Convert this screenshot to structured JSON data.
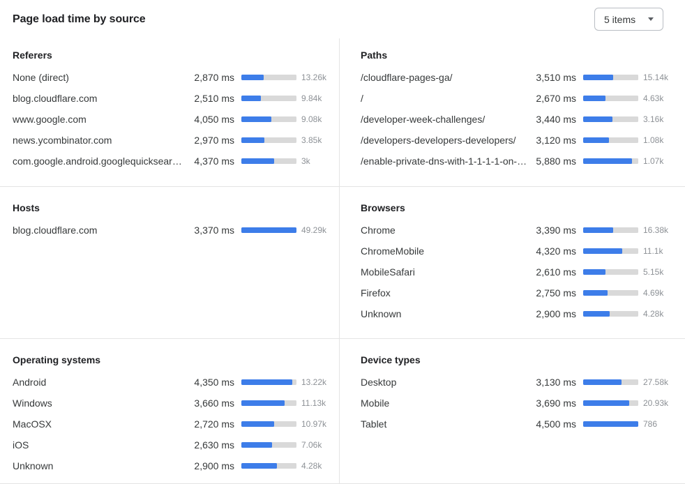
{
  "header": {
    "title": "Page load time by source",
    "dropdown": {
      "value": "5 items"
    }
  },
  "colors": {
    "bar_fill": "#3d7de9",
    "bar_track": "#d9d9d9",
    "divider": "#e4e4e4",
    "muted_text": "#8d9196"
  },
  "panels": [
    {
      "title": "Referers",
      "rows": [
        {
          "label": "None (direct)",
          "load_time": "2,870 ms",
          "bar_pct": 41,
          "count": "13.26k"
        },
        {
          "label": "blog.cloudflare.com",
          "load_time": "2,510 ms",
          "bar_pct": 36,
          "count": "9.84k"
        },
        {
          "label": "www.google.com",
          "load_time": "4,050 ms",
          "bar_pct": 55,
          "count": "9.08k"
        },
        {
          "label": "news.ycombinator.com",
          "load_time": "2,970 ms",
          "bar_pct": 42,
          "count": "3.85k"
        },
        {
          "label": "com.google.android.googlequicksearc…",
          "load_time": "4,370 ms",
          "bar_pct": 60,
          "count": "3k"
        }
      ]
    },
    {
      "title": "Paths",
      "rows": [
        {
          "label": "/cloudflare-pages-ga/",
          "load_time": "3,510 ms",
          "bar_pct": 54,
          "count": "15.14k"
        },
        {
          "label": "/",
          "load_time": "2,670 ms",
          "bar_pct": 41,
          "count": "4.63k"
        },
        {
          "label": "/developer-week-challenges/",
          "load_time": "3,440 ms",
          "bar_pct": 53,
          "count": "3.16k"
        },
        {
          "label": "/developers-developers-developers/",
          "load_time": "3,120 ms",
          "bar_pct": 47,
          "count": "1.08k"
        },
        {
          "label": "/enable-private-dns-with-1-1-1-1-on-…",
          "load_time": "5,880 ms",
          "bar_pct": 88,
          "count": "1.07k"
        }
      ]
    },
    {
      "title": "Hosts",
      "rows": [
        {
          "label": "blog.cloudflare.com",
          "load_time": "3,370 ms",
          "bar_pct": 100,
          "count": "49.29k"
        }
      ]
    },
    {
      "title": "Browsers",
      "rows": [
        {
          "label": "Chrome",
          "load_time": "3,390 ms",
          "bar_pct": 55,
          "count": "16.38k"
        },
        {
          "label": "ChromeMobile",
          "load_time": "4,320 ms",
          "bar_pct": 71,
          "count": "11.1k"
        },
        {
          "label": "MobileSafari",
          "load_time": "2,610 ms",
          "bar_pct": 41,
          "count": "5.15k"
        },
        {
          "label": "Firefox",
          "load_time": "2,750 ms",
          "bar_pct": 44,
          "count": "4.69k"
        },
        {
          "label": "Unknown",
          "load_time": "2,900 ms",
          "bar_pct": 48,
          "count": "4.28k"
        }
      ]
    },
    {
      "title": "Operating systems",
      "rows": [
        {
          "label": "Android",
          "load_time": "4,350 ms",
          "bar_pct": 93,
          "count": "13.22k"
        },
        {
          "label": "Windows",
          "load_time": "3,660 ms",
          "bar_pct": 79,
          "count": "11.13k"
        },
        {
          "label": "MacOSX",
          "load_time": "2,720 ms",
          "bar_pct": 59,
          "count": "10.97k"
        },
        {
          "label": "iOS",
          "load_time": "2,630 ms",
          "bar_pct": 56,
          "count": "7.06k"
        },
        {
          "label": "Unknown",
          "load_time": "2,900 ms",
          "bar_pct": 64,
          "count": "4.28k"
        }
      ]
    },
    {
      "title": "Device types",
      "rows": [
        {
          "label": "Desktop",
          "load_time": "3,130 ms",
          "bar_pct": 70,
          "count": "27.58k"
        },
        {
          "label": "Mobile",
          "load_time": "3,690 ms",
          "bar_pct": 83,
          "count": "20.93k"
        },
        {
          "label": "Tablet",
          "load_time": "4,500 ms",
          "bar_pct": 100,
          "count": "786"
        }
      ]
    }
  ]
}
